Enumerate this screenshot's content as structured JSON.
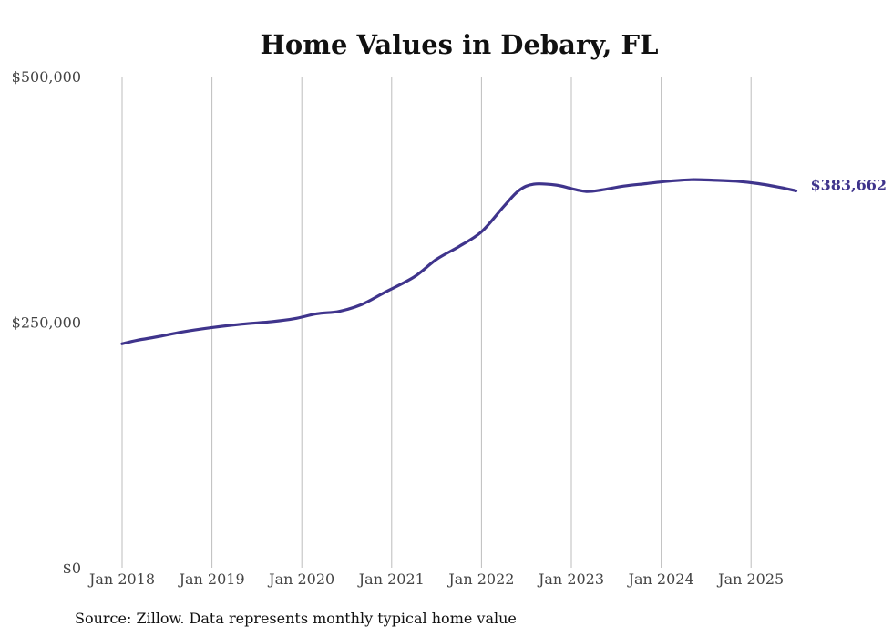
{
  "chart_data": {
    "type": "line",
    "title": "Home Values in Debary, FL",
    "ylim": [
      0,
      500000
    ],
    "xlim": [
      "2018-01",
      "2025-07"
    ],
    "grid": {
      "vertical": true,
      "horizontal": false
    },
    "y_ticks": [
      {
        "value": 0,
        "label": "$0"
      },
      {
        "value": 250000,
        "label": "$250,000"
      },
      {
        "value": 500000,
        "label": "$500,000"
      }
    ],
    "x_ticks": [
      {
        "date": "2018-01",
        "label": "Jan 2018"
      },
      {
        "date": "2019-01",
        "label": "Jan 2019"
      },
      {
        "date": "2020-01",
        "label": "Jan 2020"
      },
      {
        "date": "2021-01",
        "label": "Jan 2021"
      },
      {
        "date": "2022-01",
        "label": "Jan 2022"
      },
      {
        "date": "2023-01",
        "label": "Jan 2023"
      },
      {
        "date": "2024-01",
        "label": "Jan 2024"
      },
      {
        "date": "2025-01",
        "label": "Jan 2025"
      }
    ],
    "series": [
      {
        "color": "#3f348c",
        "end_label": "$383,662",
        "points": [
          {
            "date": "2018-01",
            "value": 228000
          },
          {
            "date": "2018-03",
            "value": 231500
          },
          {
            "date": "2018-06",
            "value": 235500
          },
          {
            "date": "2018-09",
            "value": 240000
          },
          {
            "date": "2019-01",
            "value": 244500
          },
          {
            "date": "2019-05",
            "value": 248000
          },
          {
            "date": "2019-09",
            "value": 250500
          },
          {
            "date": "2019-12",
            "value": 253500
          },
          {
            "date": "2020-03",
            "value": 258500
          },
          {
            "date": "2020-06",
            "value": 261000
          },
          {
            "date": "2020-09",
            "value": 268000
          },
          {
            "date": "2020-12",
            "value": 280000
          },
          {
            "date": "2021-04",
            "value": 296000
          },
          {
            "date": "2021-07",
            "value": 314000
          },
          {
            "date": "2021-10",
            "value": 327000
          },
          {
            "date": "2022-01",
            "value": 342000
          },
          {
            "date": "2022-04",
            "value": 368000
          },
          {
            "date": "2022-06",
            "value": 384000
          },
          {
            "date": "2022-08",
            "value": 390500
          },
          {
            "date": "2022-11",
            "value": 389500
          },
          {
            "date": "2023-01",
            "value": 386000
          },
          {
            "date": "2023-03",
            "value": 383000
          },
          {
            "date": "2023-05",
            "value": 384500
          },
          {
            "date": "2023-08",
            "value": 388500
          },
          {
            "date": "2023-11",
            "value": 391000
          },
          {
            "date": "2024-02",
            "value": 393500
          },
          {
            "date": "2024-05",
            "value": 395000
          },
          {
            "date": "2024-08",
            "value": 394500
          },
          {
            "date": "2024-11",
            "value": 393500
          },
          {
            "date": "2025-02",
            "value": 391000
          },
          {
            "date": "2025-05",
            "value": 387000
          },
          {
            "date": "2025-07",
            "value": 383662
          }
        ]
      }
    ]
  },
  "footer": {
    "source": "Source: Zillow. Data represents monthly typical home value"
  }
}
